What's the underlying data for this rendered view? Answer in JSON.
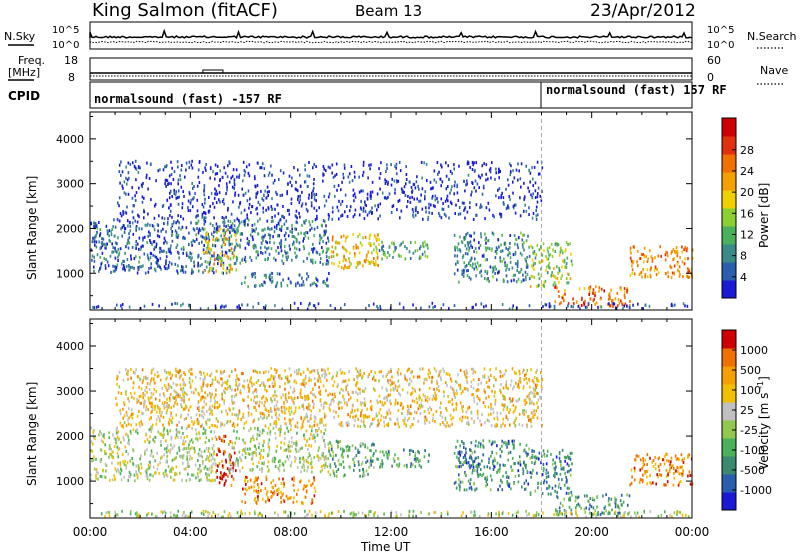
{
  "header": {
    "station": "King Salmon (fitACF)",
    "beam": "Beam 13",
    "date": "23/Apr/2012"
  },
  "top_panels": {
    "nsky_label": "N.Sky",
    "nsearch_label": "N.Search",
    "noise_ticks": [
      "10^5",
      "10^0"
    ],
    "freq_label_1": "Freq.",
    "freq_label_2": "[MHz]",
    "freq_ticks": [
      "18",
      "8"
    ],
    "nave_label": "Nave",
    "nave_ticks": [
      "60",
      "0"
    ],
    "cpid_label": "CPID",
    "cpid_entries": [
      {
        "text": "normalsound (fast) -157 RF",
        "start_hour": 0.0
      },
      {
        "text": "normalsound (fast) 157 RF",
        "start_hour": 18.0
      }
    ]
  },
  "x_axis": {
    "label": "Time UT",
    "ticks": [
      "00:00",
      "04:00",
      "08:00",
      "12:00",
      "16:00",
      "20:00",
      "00:00"
    ]
  },
  "chart_data": [
    {
      "type": "heatmap",
      "name": "power",
      "ylabel": "Slant Range [km]",
      "yticks": [
        "1000",
        "2000",
        "3000",
        "4000"
      ],
      "ylim": [
        180,
        4600
      ],
      "xlim_hours": [
        0,
        24
      ],
      "colorbar_label": "Power [dB]",
      "colorbar_ticks": [
        "4",
        "8",
        "12",
        "16",
        "20",
        "24",
        "28"
      ],
      "colorbar_colors": [
        "#1a1ad6",
        "#2a5fb0",
        "#3a8a8a",
        "#4ab05a",
        "#8ad030",
        "#f0d000",
        "#f5a000",
        "#f07000",
        "#e03010",
        "#d00000"
      ],
      "scatter_regions": [
        {
          "t0": 0.0,
          "t1": 5.5,
          "r0": 1000,
          "r1": 2200,
          "level": 0.15
        },
        {
          "t0": 4.5,
          "t1": 5.8,
          "r0": 1000,
          "r1": 2000,
          "level": 0.55
        },
        {
          "t0": 5.5,
          "t1": 9.5,
          "r0": 1200,
          "r1": 2200,
          "level": 0.2
        },
        {
          "t0": 9.5,
          "t1": 11.5,
          "r0": 1100,
          "r1": 1900,
          "level": 0.6
        },
        {
          "t0": 11.5,
          "t1": 13.5,
          "r0": 1300,
          "r1": 1700,
          "level": 0.3
        },
        {
          "t0": 14.5,
          "t1": 17.5,
          "r0": 800,
          "r1": 1900,
          "level": 0.25
        },
        {
          "t0": 17.5,
          "t1": 19.2,
          "r0": 700,
          "r1": 1700,
          "level": 0.45
        },
        {
          "t0": 18.5,
          "t1": 21.5,
          "r0": 250,
          "r1": 700,
          "level": 0.75
        },
        {
          "t0": 21.5,
          "t1": 24.0,
          "r0": 900,
          "r1": 1600,
          "level": 0.7
        },
        {
          "t0": 6.0,
          "t1": 9.5,
          "r0": 700,
          "r1": 1000,
          "level": 0.2
        },
        {
          "t0": 0.0,
          "t1": 24.0,
          "r0": 200,
          "r1": 330,
          "level": 0.1
        },
        {
          "t0": 1.0,
          "t1": 18.0,
          "r0": 2200,
          "r1": 3500,
          "level": 0.05
        }
      ]
    },
    {
      "type": "heatmap",
      "name": "velocity",
      "ylabel": "Slant Range [km]",
      "yticks": [
        "1000",
        "2000",
        "3000",
        "4000"
      ],
      "ylim": [
        180,
        4600
      ],
      "xlim_hours": [
        0,
        24
      ],
      "colorbar_label": "Velocity [m s^-1]",
      "colorbar_ticks": [
        "1000",
        "500",
        "100",
        "25",
        "-25",
        "-100",
        "-500",
        "-1000"
      ],
      "colorbar_colors": [
        "#1a1ad6",
        "#2a5fb0",
        "#3a8a70",
        "#4ab05a",
        "#90c850",
        "#c0c0c0",
        "#f0c000",
        "#f5a000",
        "#f07000",
        "#d00000"
      ],
      "scatter_regions": [
        {
          "t0": 0.0,
          "t1": 5.0,
          "r0": 1000,
          "r1": 2200,
          "level": 0.5
        },
        {
          "t0": 5.0,
          "t1": 5.8,
          "r0": 900,
          "r1": 2000,
          "level": 0.92
        },
        {
          "t0": 5.5,
          "t1": 9.5,
          "r0": 1200,
          "r1": 2200,
          "level": 0.5
        },
        {
          "t0": 6.0,
          "t1": 9.0,
          "r0": 500,
          "r1": 1100,
          "level": 0.78
        },
        {
          "t0": 9.5,
          "t1": 11.5,
          "r0": 1100,
          "r1": 1900,
          "level": 0.35
        },
        {
          "t0": 11.5,
          "t1": 13.5,
          "r0": 1300,
          "r1": 1700,
          "level": 0.3
        },
        {
          "t0": 14.5,
          "t1": 17.5,
          "r0": 800,
          "r1": 1900,
          "level": 0.25
        },
        {
          "t0": 14.6,
          "t1": 15.0,
          "r0": 1300,
          "r1": 1900,
          "level": 0.05
        },
        {
          "t0": 17.5,
          "t1": 19.2,
          "r0": 700,
          "r1": 1700,
          "level": 0.25
        },
        {
          "t0": 18.5,
          "t1": 21.5,
          "r0": 250,
          "r1": 700,
          "level": 0.3
        },
        {
          "t0": 21.5,
          "t1": 24.0,
          "r0": 900,
          "r1": 1600,
          "level": 0.82
        },
        {
          "t0": 0.0,
          "t1": 24.0,
          "r0": 200,
          "r1": 330,
          "level": 0.5
        },
        {
          "t0": 1.0,
          "t1": 18.0,
          "r0": 2200,
          "r1": 3500,
          "level": 0.65
        }
      ]
    }
  ]
}
